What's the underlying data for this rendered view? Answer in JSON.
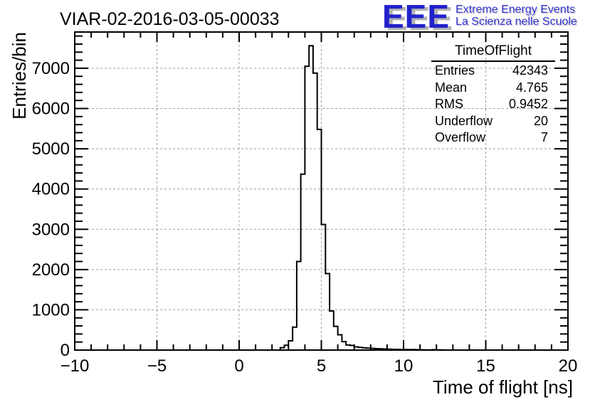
{
  "page_title": "VIAR-02-2016-03-05-00033",
  "logo": {
    "acronym": "EEE",
    "line1": "Extreme Energy Events",
    "line2": "La Scienza nelle Scuole",
    "text_color": "#2222cc",
    "shadow_color": "#b3b3b3"
  },
  "stats": {
    "title": "TimeOfFlight",
    "rows": [
      {
        "label": "Entries",
        "value": "42343"
      },
      {
        "label": "Mean",
        "value": "4.765"
      },
      {
        "label": "RMS",
        "value": "0.9452"
      },
      {
        "label": "Underflow",
        "value": "20"
      },
      {
        "label": "Overflow",
        "value": "7"
      }
    ]
  },
  "chart_data": {
    "type": "bar",
    "subtype": "step-histogram",
    "title": "VIAR-02-2016-03-05-00033",
    "xlabel": "Time of flight [ns]",
    "ylabel": "Entries/bin",
    "xlim": [
      -10,
      20
    ],
    "ylim": [
      0,
      7900
    ],
    "grid": {
      "shown": true,
      "dashed": true,
      "color": "#a0a0a0"
    },
    "legend_position": "none",
    "line_color": "#000000",
    "x_major_ticks": [
      -10,
      -5,
      0,
      5,
      10,
      15,
      20
    ],
    "x_tick_labels": [
      "−10",
      "−5",
      "0",
      "5",
      "10",
      "15",
      "20"
    ],
    "x_minor_step": 1,
    "y_major_ticks": [
      0,
      1000,
      2000,
      3000,
      4000,
      5000,
      6000,
      7000
    ],
    "y_tick_labels": [
      "0",
      "1000",
      "2000",
      "3000",
      "4000",
      "5000",
      "6000",
      "7000"
    ],
    "y_minor_step": 200,
    "bin_start": 2.5,
    "bin_width": 0.25,
    "bin_values": [
      60,
      120,
      230,
      570,
      2200,
      4370,
      7050,
      7560,
      6880,
      5480,
      3120,
      1900,
      970,
      590,
      380,
      210,
      125,
      115,
      80,
      65,
      55,
      50,
      42,
      35,
      30,
      26,
      22,
      18,
      16,
      14,
      12,
      10,
      14,
      8,
      7,
      6,
      5,
      8,
      4,
      6
    ],
    "peak_bin": {
      "range_ns": [
        4.25,
        4.5
      ],
      "value": 7560
    }
  }
}
